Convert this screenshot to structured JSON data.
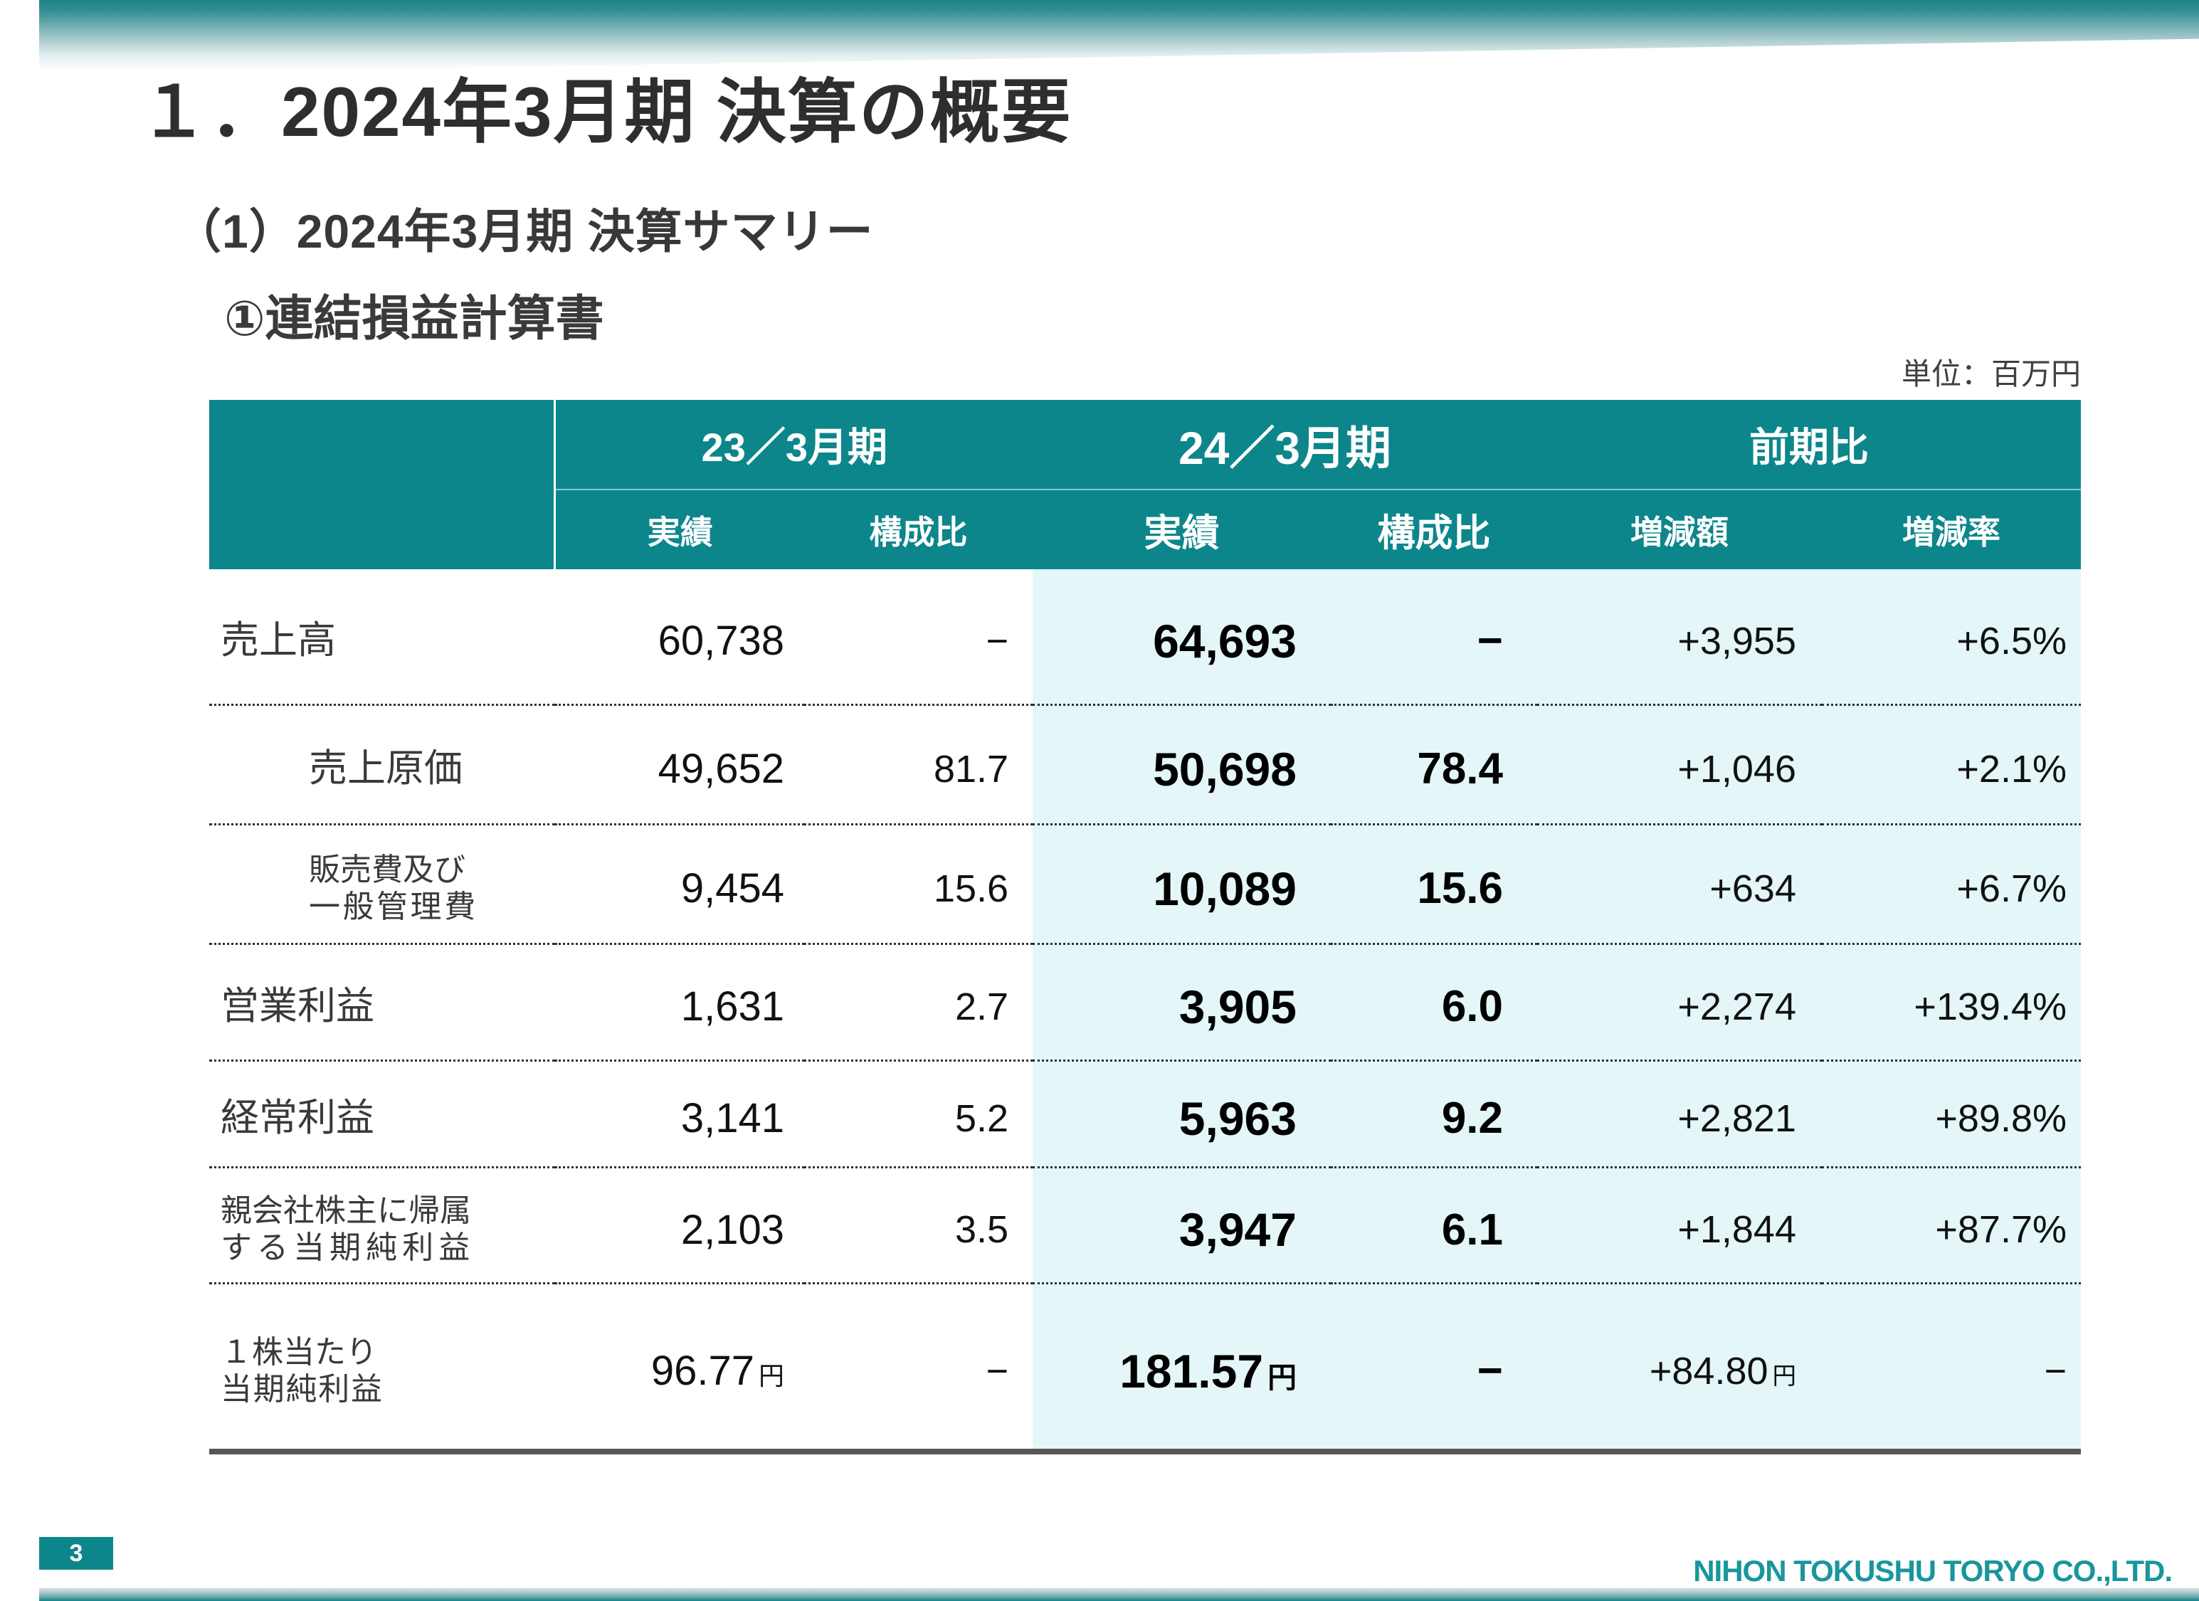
{
  "page": {
    "title": "１．2024年3月期 決算の概要",
    "subtitle": "（1）2024年3月期 決算サマリー",
    "section_heading": "①連結損益計算書",
    "unit_note": "単位：百万円",
    "page_number": "3",
    "company_name": "NIHON TOKUSHU TORYO CO.,LTD."
  },
  "colors": {
    "teal_header": "#0C868B",
    "pale_highlight": "#E4F6F8",
    "company_text": "#18969C",
    "table_bottom_rule": "#575757"
  },
  "table": {
    "column_groups": [
      {
        "label": "23／3月期"
      },
      {
        "label": "24／3月期"
      },
      {
        "label": "前期比"
      }
    ],
    "sub_headers": [
      "実績",
      "構成比",
      "実績",
      "構成比",
      "増減額",
      "増減率"
    ],
    "rows": [
      {
        "label_lines": [
          "売上高"
        ],
        "indent": false,
        "small": false,
        "cells": [
          {
            "v": "60,738"
          },
          {
            "v": "−"
          },
          {
            "v": "64,693"
          },
          {
            "v": "−"
          },
          {
            "v": "+3,955"
          },
          {
            "v": "+6.5%"
          }
        ]
      },
      {
        "label_lines": [
          "売上原価"
        ],
        "indent": true,
        "small": false,
        "cells": [
          {
            "v": "49,652"
          },
          {
            "v": "81.7"
          },
          {
            "v": "50,698"
          },
          {
            "v": "78.4"
          },
          {
            "v": "+1,046"
          },
          {
            "v": "+2.1%"
          }
        ]
      },
      {
        "label_lines": [
          "販売費及び",
          "一般管理費"
        ],
        "indent": true,
        "small": true,
        "cells": [
          {
            "v": "9,454"
          },
          {
            "v": "15.6"
          },
          {
            "v": "10,089"
          },
          {
            "v": "15.6"
          },
          {
            "v": "+634"
          },
          {
            "v": "+6.7%"
          }
        ]
      },
      {
        "label_lines": [
          "営業利益"
        ],
        "indent": false,
        "small": false,
        "cells": [
          {
            "v": "1,631"
          },
          {
            "v": "2.7"
          },
          {
            "v": "3,905"
          },
          {
            "v": "6.0"
          },
          {
            "v": "+2,274"
          },
          {
            "v": "+139.4%"
          }
        ]
      },
      {
        "label_lines": [
          "経常利益"
        ],
        "indent": false,
        "small": false,
        "cells": [
          {
            "v": "3,141"
          },
          {
            "v": "5.2"
          },
          {
            "v": "5,963"
          },
          {
            "v": "9.2"
          },
          {
            "v": "+2,821"
          },
          {
            "v": "+89.8%"
          }
        ]
      },
      {
        "label_lines": [
          "親会社株主に帰属",
          "する当期純利益"
        ],
        "indent": false,
        "small": true,
        "cells": [
          {
            "v": "2,103"
          },
          {
            "v": "3.5"
          },
          {
            "v": "3,947"
          },
          {
            "v": "6.1"
          },
          {
            "v": "+1,844"
          },
          {
            "v": "+87.7%"
          }
        ]
      },
      {
        "label_lines": [
          "１株当たり",
          "当期純利益"
        ],
        "indent": false,
        "small": true,
        "cells": [
          {
            "v": "96.77",
            "s": "円"
          },
          {
            "v": "−"
          },
          {
            "v": "181.57",
            "s": "円"
          },
          {
            "v": "−"
          },
          {
            "v": "+84.80",
            "s": "円"
          },
          {
            "v": "−"
          }
        ]
      }
    ]
  }
}
